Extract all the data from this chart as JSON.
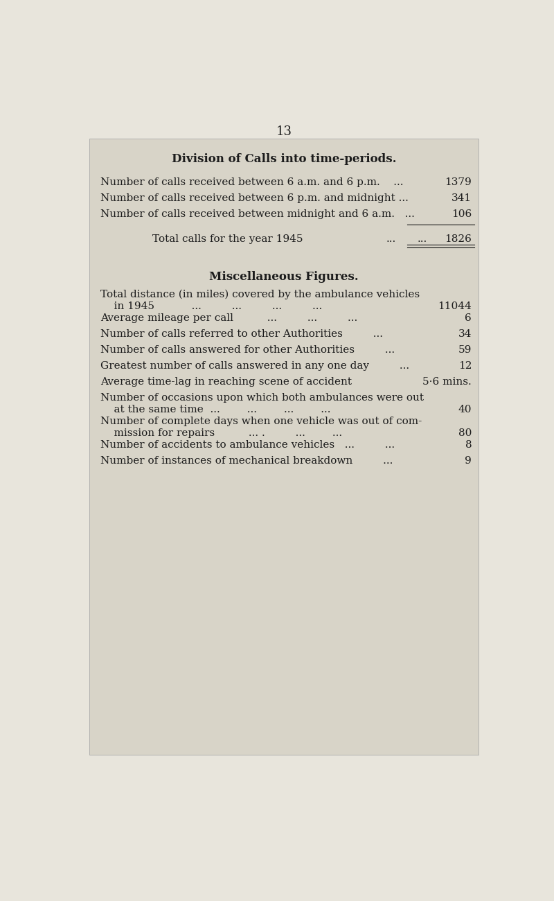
{
  "page_number": "13",
  "bg_color": "#e8e5dc",
  "box_color": "#d8d4c8",
  "text_color": "#1c1c1c",
  "section1_title": "Division of Calls into time-periods.",
  "s1_row0_label": "Number of calls received between 6 a.m. and 6 p.m.    ...",
  "s1_row0_value": "1379",
  "s1_row1_label": "Number of calls received between 6 p.m. and midnight ...",
  "s1_row1_value": "341",
  "s1_row2_label": "Number of calls received between midnight and 6 a.m.   ...",
  "s1_row2_value": "106",
  "total_label": "Total calls for the year 1945",
  "total_dots1": "...",
  "total_dots2": "...",
  "total_value": "1826",
  "section2_title": "Miscellaneous Figures.",
  "s2_r0_line1": "Total distance (in miles) covered by the ambulance vehicles",
  "s2_r0_line2": "    in 1945           ...         ...         ...         ...",
  "s2_r0_value": "11044",
  "s2_r1_label": "Average mileage per call          ...         ...         ...",
  "s2_r1_value": "6",
  "s2_r2_label": "Number of calls referred to other Authorities         ...",
  "s2_r2_value": "34",
  "s2_r3_label": "Number of calls answered for other Authorities         ...",
  "s2_r3_value": "59",
  "s2_r4_label": "Greatest number of calls answered in any one day         ...",
  "s2_r4_value": "12",
  "s2_r5_label": "Average time-lag in reaching scene of accident",
  "s2_r5_value": "5·6 mins.",
  "s2_r6_line1": "Number of occasions upon which both ambulances were out",
  "s2_r6_line2": "    at the same time  ...        ...        ...        ...",
  "s2_r6_value": "40",
  "s2_r7_line1": "Number of complete days when one vehicle was out of com-",
  "s2_r7_line2": "    mission for repairs          ... .         ...        ...",
  "s2_r7_value": "80",
  "s2_r8_label": "Number of accidents to ambulance vehicles   ...         ...",
  "s2_r8_value": "8",
  "s2_r9_label": "Number of instances of mechanical breakdown         ...",
  "s2_r9_value": "9"
}
